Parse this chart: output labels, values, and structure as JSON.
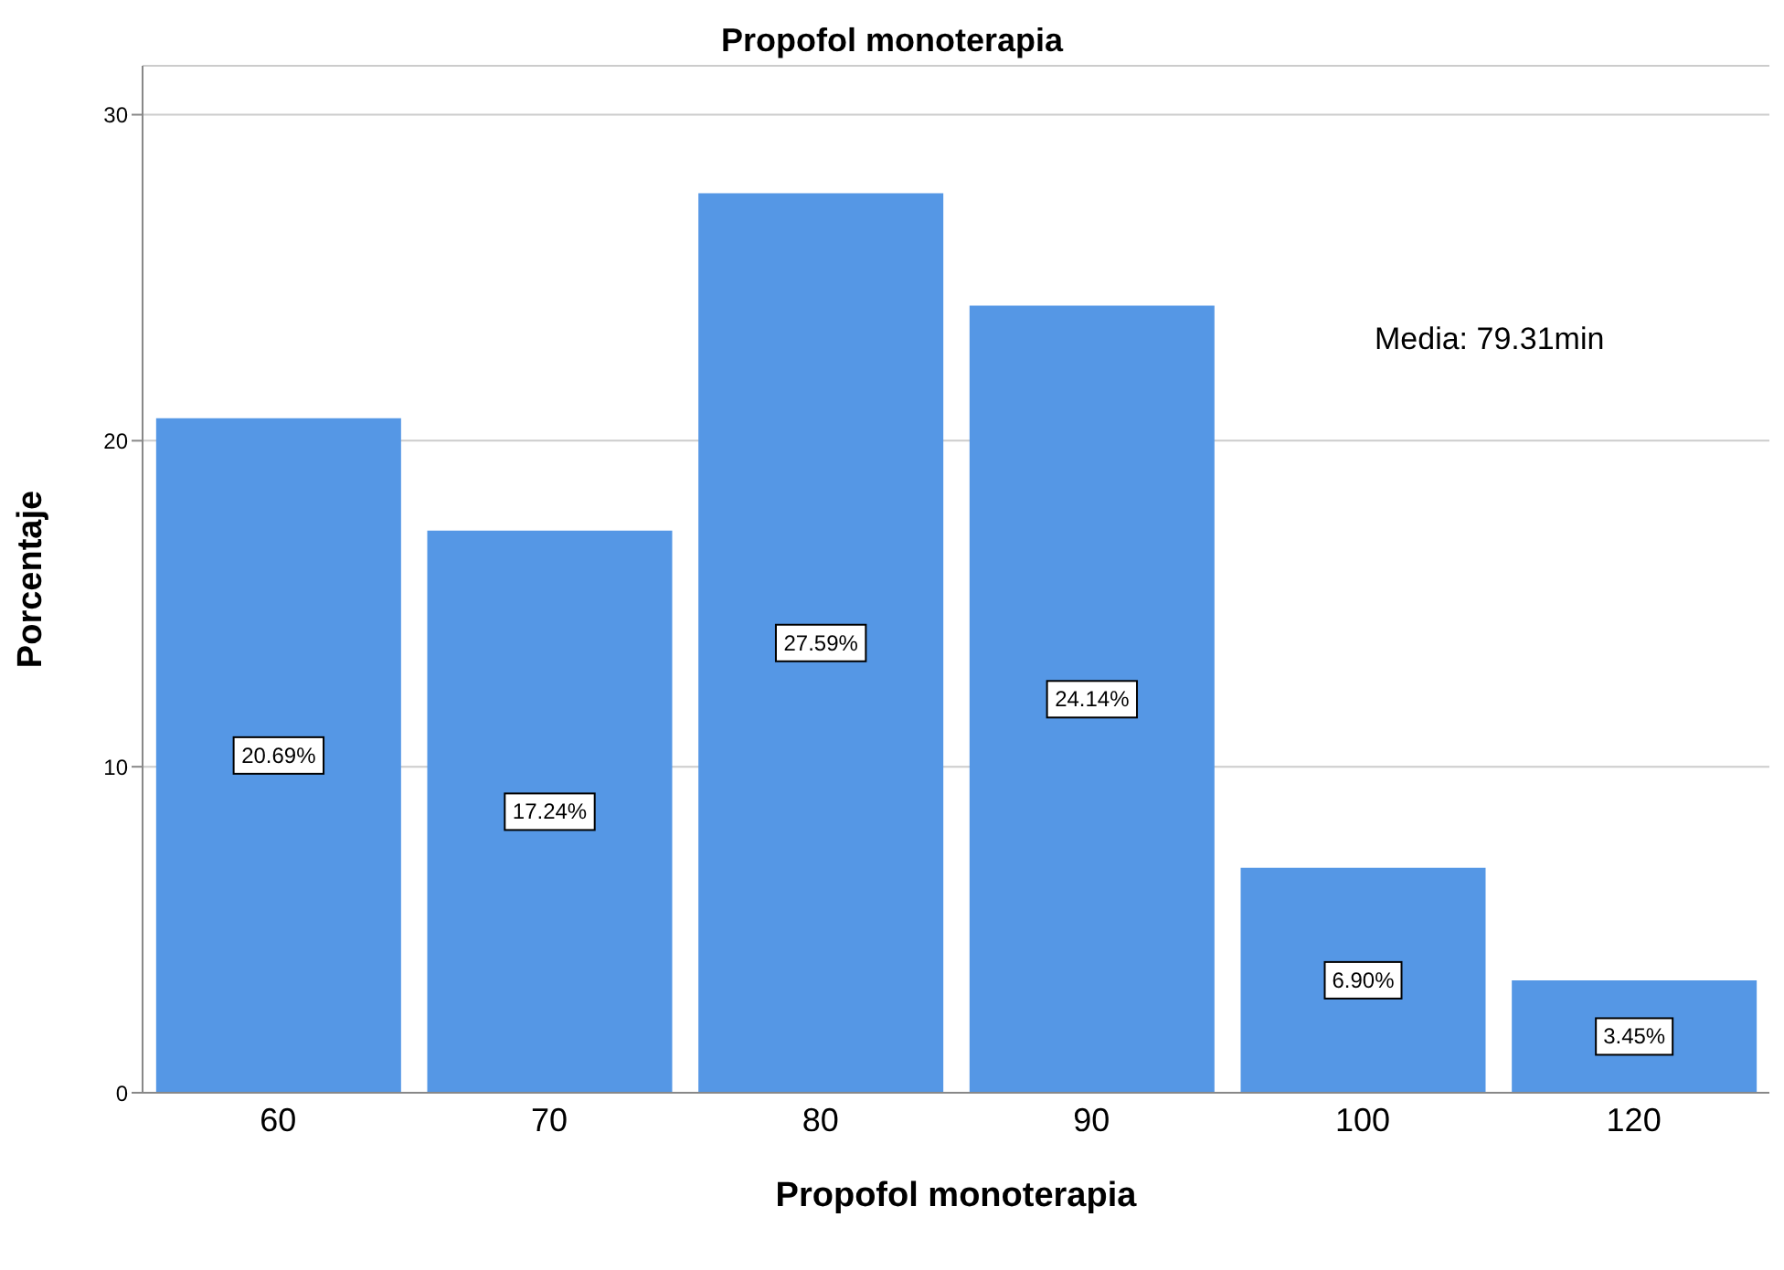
{
  "chart_data": {
    "type": "bar",
    "title": "Propofol monoterapia",
    "xlabel": "Propofol monoterapia",
    "ylabel": "Porcentaje",
    "categories": [
      "60",
      "70",
      "80",
      "90",
      "100",
      "120"
    ],
    "values": [
      20.69,
      17.24,
      27.59,
      24.14,
      6.9,
      3.45
    ],
    "value_labels": [
      "20.69%",
      "17.24%",
      "27.59%",
      "24.14%",
      "6.90%",
      "3.45%"
    ],
    "color": "#5597e5",
    "ylim": [
      0,
      31.5
    ],
    "yticks": [
      0,
      10,
      20,
      30
    ],
    "grid": "y",
    "annotations": [
      "Media: 79.31min"
    ]
  }
}
